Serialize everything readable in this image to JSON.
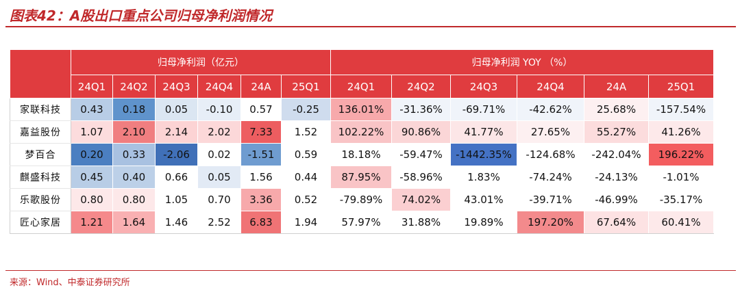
{
  "title": "图表42：A股出口重点公司归母净利润情况",
  "source": "来源：Wind、中泰证券研究所",
  "chart_data": {
    "type": "table",
    "group_headers": [
      {
        "label": "归母净利润（亿元）",
        "span": 6
      },
      {
        "label": "归母净利润 YOY （%）",
        "span": 6
      }
    ],
    "columns": [
      "24Q1",
      "24Q2",
      "24Q3",
      "24Q4",
      "24A",
      "25Q1",
      "24Q1",
      "24Q2",
      "24Q3",
      "24Q4",
      "24A",
      "25Q1"
    ],
    "rows": [
      {
        "name": "家联科技",
        "values": [
          "0.43",
          "0.18",
          "0.05",
          "-0.10",
          "0.57",
          "-0.25",
          "136.01%",
          "-31.36%",
          "-69.71%",
          "-42.62%",
          "25.68%",
          "-157.54%"
        ]
      },
      {
        "name": "嘉益股份",
        "values": [
          "1.07",
          "2.10",
          "2.14",
          "2.02",
          "7.33",
          "1.52",
          "102.22%",
          "90.86%",
          "41.77%",
          "27.65%",
          "55.27%",
          "41.26%"
        ]
      },
      {
        "name": "梦百合",
        "values": [
          "0.20",
          "0.33",
          "-2.06",
          "0.02",
          "-1.51",
          "0.59",
          "18.18%",
          "-59.47%",
          "-1442.35%",
          "-124.68%",
          "-242.04%",
          "196.22%"
        ]
      },
      {
        "name": "麒盛科技",
        "values": [
          "0.45",
          "0.40",
          "0.66",
          "0.05",
          "1.56",
          "0.44",
          "87.95%",
          "-58.96%",
          "1.83%",
          "-74.24%",
          "-24.13%",
          "-1.01%"
        ]
      },
      {
        "name": "乐歌股份",
        "values": [
          "0.80",
          "0.80",
          "1.05",
          "0.70",
          "3.36",
          "0.52",
          "-79.89%",
          "74.02%",
          "43.01%",
          "-39.71%",
          "-46.99%",
          "-35.17%"
        ]
      },
      {
        "name": "匠心家居",
        "values": [
          "1.21",
          "1.64",
          "1.46",
          "2.52",
          "6.83",
          "1.94",
          "57.97%",
          "31.88%",
          "19.89%",
          "197.20%",
          "67.64%",
          "60.41%"
        ]
      }
    ],
    "cell_colors": [
      [
        "#b8cde6",
        "#5f93cc",
        "#dbe6f2",
        "#e7eef7",
        "#ffffff",
        "#cfdcee",
        "#f7a9ab",
        "#f0f4fa",
        "#f0f4fa",
        "#f0f4fa",
        "#fdf0f1",
        "#f0f4fa"
      ],
      [
        "#fcdcdd",
        "#f07e80",
        "#fcd3d4",
        "#fcd8d9",
        "#ed5d60",
        "#ffffff",
        "#f9c4c6",
        "#fbd6d7",
        "#fce6e7",
        "#fdf0f1",
        "#fcdcdd",
        "#fde9ea"
      ],
      [
        "#4b7fc1",
        "#a8c1e1",
        "#4070b8",
        "#ffffff",
        "#6f9cd0",
        "#ffffff",
        "#ffffff",
        "#ffffff",
        "#4472c4",
        "#ffffff",
        "#ffffff",
        "#f35d5f"
      ],
      [
        "#b8cde6",
        "#bcd0e8",
        "#ffffff",
        "#e2eaf5",
        "#ffffff",
        "#ffffff",
        "#f9c4c6",
        "#ffffff",
        "#ffffff",
        "#ffffff",
        "#ffffff",
        "#ffffff"
      ],
      [
        "#fde8e9",
        "#fde8e9",
        "#ffffff",
        "#ffffff",
        "#f7a9ab",
        "#ffffff",
        "#ffffff",
        "#fbcfd1",
        "#ffffff",
        "#ffffff",
        "#ffffff",
        "#ffffff"
      ],
      [
        "#f5898b",
        "#f9b0b2",
        "#ffffff",
        "#ffffff",
        "#f07375",
        "#ffffff",
        "#ffffff",
        "#ffffff",
        "#ffffff",
        "#f38a8c",
        "#fde2e3",
        "#fde9ea"
      ]
    ]
  }
}
